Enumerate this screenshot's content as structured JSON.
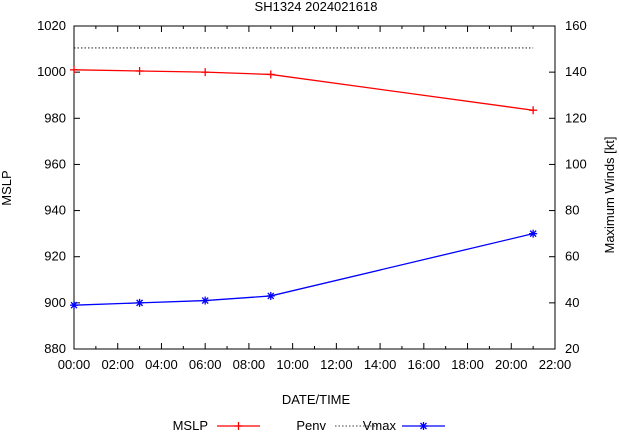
{
  "chart_data": {
    "type": "line",
    "title": "SH1324 2024021618",
    "xlabel": "DATE/TIME",
    "ylabel": "MSLP",
    "y2label": "Maximum Winds [kt]",
    "x_ticks": [
      "00:00",
      "02:00",
      "04:00",
      "06:00",
      "08:00",
      "10:00",
      "12:00",
      "14:00",
      "16:00",
      "18:00",
      "20:00",
      "22:00"
    ],
    "xlim": [
      0,
      22
    ],
    "ylim": [
      880,
      1020
    ],
    "y_ticks": [
      880,
      900,
      920,
      940,
      960,
      980,
      1000,
      1020
    ],
    "y2lim": [
      20,
      160
    ],
    "y2_ticks": [
      20,
      40,
      60,
      80,
      100,
      120,
      140,
      160
    ],
    "series": [
      {
        "name": "MSLP",
        "axis": "left",
        "color": "#ff0000",
        "marker": "plus",
        "x": [
          0,
          3,
          6,
          9,
          21
        ],
        "y": [
          1001,
          1000.5,
          1000,
          999,
          983.5
        ]
      },
      {
        "name": "Penv",
        "axis": "left",
        "color": "#000000",
        "style": "dotted",
        "x": [
          0,
          21
        ],
        "y": [
          1010.5,
          1010.5
        ]
      },
      {
        "name": "Vmax",
        "axis": "right",
        "color": "#0000ff",
        "marker": "star",
        "x": [
          0,
          3,
          6,
          9,
          21
        ],
        "y": [
          39,
          40,
          41,
          43,
          70
        ]
      }
    ],
    "legend": [
      {
        "label": "MSLP",
        "color": "#ff0000",
        "style": "solid",
        "marker": "plus"
      },
      {
        "label": "Penv",
        "color": "#000000",
        "style": "dotted",
        "marker": "none"
      },
      {
        "label": "Vmax",
        "color": "#0000ff",
        "style": "solid",
        "marker": "star"
      }
    ],
    "legend_position": "bottom"
  }
}
